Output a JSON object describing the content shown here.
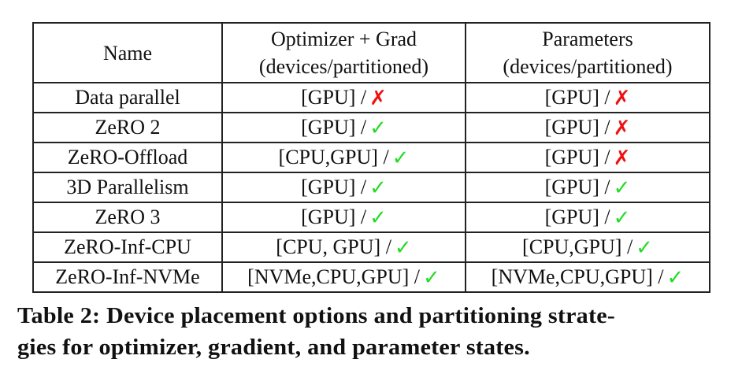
{
  "table": {
    "headers": {
      "name": "Name",
      "optimizer_grad": {
        "line1": "Optimizer + Grad",
        "line2": "(devices/partitioned)"
      },
      "parameters": {
        "line1": "Parameters",
        "line2": "(devices/partitioned)"
      }
    },
    "rows": [
      {
        "name": "Data parallel",
        "optimizer_grad": {
          "devices": "[GPU] /",
          "partitioned": "✗"
        },
        "parameters": {
          "devices": "[GPU] /",
          "partitioned": "✗"
        }
      },
      {
        "name": "ZeRO 2",
        "optimizer_grad": {
          "devices": "[GPU] /",
          "partitioned": "✓"
        },
        "parameters": {
          "devices": "[GPU] /",
          "partitioned": "✗"
        }
      },
      {
        "name": "ZeRO-Offload",
        "optimizer_grad": {
          "devices": "[CPU,GPU] /",
          "partitioned": "✓"
        },
        "parameters": {
          "devices": "[GPU] /",
          "partitioned": "✗"
        }
      },
      {
        "name": "3D Parallelism",
        "optimizer_grad": {
          "devices": "[GPU] /",
          "partitioned": "✓"
        },
        "parameters": {
          "devices": "[GPU] /",
          "partitioned": "✓"
        }
      },
      {
        "name": "ZeRO 3",
        "optimizer_grad": {
          "devices": "[GPU] /",
          "partitioned": "✓"
        },
        "parameters": {
          "devices": "[GPU] /",
          "partitioned": "✓"
        }
      },
      {
        "name": "ZeRO-Inf-CPU",
        "optimizer_grad": {
          "devices": "[CPU, GPU] /",
          "partitioned": "✓"
        },
        "parameters": {
          "devices": "[CPU,GPU] /",
          "partitioned": "✓"
        }
      },
      {
        "name": "ZeRO-Inf-NVMe",
        "optimizer_grad": {
          "devices": "[NVMe,CPU,GPU] /",
          "partitioned": "✓"
        },
        "parameters": {
          "devices": "[NVMe,CPU,GPU] /",
          "partitioned": "✓"
        }
      }
    ]
  },
  "caption": {
    "line1": "Table 2: Device placement options and partitioning strate-",
    "line2": "gies for optimizer, gradient, and parameter states."
  },
  "colors": {
    "check": "#22dd22",
    "cross": "#ee1111",
    "border": "#222222"
  }
}
